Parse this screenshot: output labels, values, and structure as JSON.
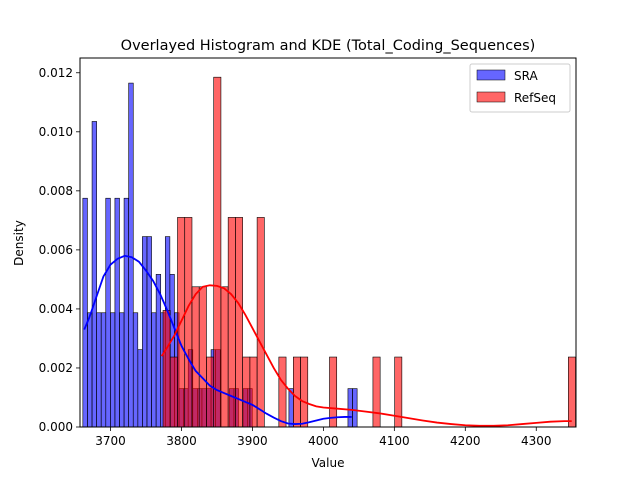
{
  "chart_data": {
    "type": "histogram",
    "title": "Overlayed Histogram and KDE (Total_Coding_Sequences)",
    "xlabel": "Value",
    "ylabel": "Density",
    "xlim": [
      3657,
      4356
    ],
    "ylim": [
      0,
      0.0125
    ],
    "xticks": [
      3700,
      3800,
      3900,
      4000,
      4100,
      4200,
      4300
    ],
    "yticks": [
      0.0,
      0.002,
      0.004,
      0.006,
      0.008,
      0.01,
      0.012
    ],
    "ytick_labels": [
      "0.000",
      "0.002",
      "0.004",
      "0.006",
      "0.008",
      "0.010",
      "0.012"
    ],
    "grid": false,
    "legend_position": "upper right",
    "series": [
      {
        "name": "SRA",
        "color": "#0000ff",
        "bin_width": 6.45,
        "bins": [
          {
            "x": 3661.0,
            "y": 0.00775
          },
          {
            "x": 3667.5,
            "y": 0.00387
          },
          {
            "x": 3674.0,
            "y": 0.01035
          },
          {
            "x": 3680.4,
            "y": 0.00387
          },
          {
            "x": 3686.9,
            "y": 0.00387
          },
          {
            "x": 3693.3,
            "y": 0.00775
          },
          {
            "x": 3699.8,
            "y": 0.00387
          },
          {
            "x": 3706.2,
            "y": 0.00775
          },
          {
            "x": 3712.7,
            "y": 0.00387
          },
          {
            "x": 3719.1,
            "y": 0.00775
          },
          {
            "x": 3725.6,
            "y": 0.01165
          },
          {
            "x": 3732.0,
            "y": 0.00387
          },
          {
            "x": 3738.5,
            "y": 0.00262
          },
          {
            "x": 3744.9,
            "y": 0.00645
          },
          {
            "x": 3751.4,
            "y": 0.00645
          },
          {
            "x": 3757.8,
            "y": 0.00387
          },
          {
            "x": 3764.3,
            "y": 0.00517
          },
          {
            "x": 3770.7,
            "y": 0.00387
          },
          {
            "x": 3777.2,
            "y": 0.00645
          },
          {
            "x": 3783.6,
            "y": 0.00517
          },
          {
            "x": 3790.1,
            "y": 0.00387
          },
          {
            "x": 3796.6,
            "y": 0.0013
          },
          {
            "x": 3803.0,
            "y": 0.0013
          },
          {
            "x": 3809.5,
            "y": 0.00262
          },
          {
            "x": 3815.9,
            "y": 0.0013
          },
          {
            "x": 3822.4,
            "y": 0.0013
          },
          {
            "x": 3828.8,
            "y": 0.0013
          },
          {
            "x": 3835.3,
            "y": 0.0013
          },
          {
            "x": 3841.7,
            "y": 0.00262
          },
          {
            "x": 3848.2,
            "y": 0.00262
          },
          {
            "x": 3867.5,
            "y": 0.0013
          },
          {
            "x": 3873.9,
            "y": 0.0013
          },
          {
            "x": 3886.9,
            "y": 0.0013
          },
          {
            "x": 3893.3,
            "y": 0.0013
          },
          {
            "x": 3951.4,
            "y": 0.0013
          },
          {
            "x": 4034.6,
            "y": 0.0013
          },
          {
            "x": 4041.1,
            "y": 0.0013
          }
        ],
        "kde": {
          "x": [
            3663,
            3670,
            3680,
            3690,
            3700,
            3710,
            3720,
            3730,
            3740,
            3750,
            3760,
            3770,
            3780,
            3790,
            3800,
            3810,
            3820,
            3830,
            3840,
            3850,
            3860,
            3870,
            3880,
            3890,
            3900,
            3910,
            3920,
            3930,
            3940,
            3950,
            3960,
            3970,
            3980,
            3990,
            4000,
            4010,
            4020,
            4030,
            4040
          ],
          "y": [
            0.0033,
            0.0037,
            0.0044,
            0.0051,
            0.0055,
            0.0057,
            0.0058,
            0.00575,
            0.0056,
            0.0053,
            0.00495,
            0.0045,
            0.00395,
            0.00335,
            0.00275,
            0.0023,
            0.0019,
            0.00165,
            0.0014,
            0.00125,
            0.00115,
            0.00105,
            0.00095,
            0.00085,
            0.00075,
            0.0006,
            0.00045,
            0.00032,
            0.0002,
            0.00012,
            0.0001,
            0.00011,
            0.00016,
            0.00022,
            0.00028,
            0.00031,
            0.00033,
            0.00034,
            0.00034
          ]
        }
      },
      {
        "name": "RefSeq",
        "color": "#ff0000",
        "bin_width": 10.2,
        "bins": [
          {
            "x": 3774.0,
            "y": 0.00395
          },
          {
            "x": 3784.2,
            "y": 0.00237
          },
          {
            "x": 3794.4,
            "y": 0.0071
          },
          {
            "x": 3804.6,
            "y": 0.0071
          },
          {
            "x": 3814.8,
            "y": 0.00475
          },
          {
            "x": 3825.0,
            "y": 0.00475
          },
          {
            "x": 3835.2,
            "y": 0.00237
          },
          {
            "x": 3845.4,
            "y": 0.01185
          },
          {
            "x": 3855.6,
            "y": 0.00475
          },
          {
            "x": 3865.8,
            "y": 0.0071
          },
          {
            "x": 3876.0,
            "y": 0.0071
          },
          {
            "x": 3886.2,
            "y": 0.00237
          },
          {
            "x": 3896.4,
            "y": 0.00237
          },
          {
            "x": 3906.6,
            "y": 0.0071
          },
          {
            "x": 3937.2,
            "y": 0.00237
          },
          {
            "x": 3957.6,
            "y": 0.00237
          },
          {
            "x": 3967.8,
            "y": 0.00237
          },
          {
            "x": 4008.6,
            "y": 0.00237
          },
          {
            "x": 4069.8,
            "y": 0.00237
          },
          {
            "x": 4100.4,
            "y": 0.00237
          },
          {
            "x": 4345.2,
            "y": 0.00237
          }
        ],
        "kde": {
          "x": [
            3772,
            3780,
            3790,
            3800,
            3810,
            3820,
            3830,
            3840,
            3850,
            3860,
            3870,
            3880,
            3890,
            3900,
            3910,
            3920,
            3930,
            3940,
            3950,
            3960,
            3970,
            3980,
            3990,
            4000,
            4020,
            4040,
            4060,
            4080,
            4100,
            4120,
            4140,
            4160,
            4180,
            4200,
            4220,
            4240,
            4260,
            4280,
            4300,
            4320,
            4340,
            4350
          ],
          "y": [
            0.0024,
            0.0027,
            0.0031,
            0.0036,
            0.0041,
            0.0045,
            0.00475,
            0.0048,
            0.00478,
            0.0047,
            0.0045,
            0.0042,
            0.0038,
            0.00335,
            0.0029,
            0.00245,
            0.002,
            0.0016,
            0.0013,
            0.00105,
            0.00088,
            0.00078,
            0.0007,
            0.00066,
            0.00062,
            0.00058,
            0.00052,
            0.00046,
            0.00038,
            0.0003,
            0.00022,
            0.00015,
            0.0001,
            6e-05,
            4e-05,
            4e-05,
            6e-05,
            0.0001,
            0.00014,
            0.00018,
            0.0002,
            0.0002
          ]
        }
      }
    ]
  }
}
